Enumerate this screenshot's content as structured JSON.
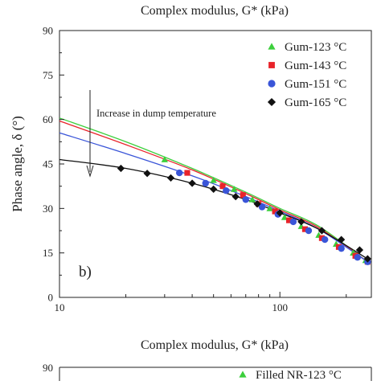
{
  "chart_data": [
    {
      "type": "scatter",
      "title": "Complex modulus, G* (kPa)",
      "xlabel": "",
      "ylabel": "Phase angle, δ (°)",
      "xscale": "log",
      "xlim": [
        10,
        260
      ],
      "ylim": [
        0,
        90
      ],
      "x_ticks": [
        10,
        100
      ],
      "x_tick_labels": [
        "10",
        "100"
      ],
      "y_ticks": [
        0,
        15,
        30,
        45,
        60,
        75,
        90
      ],
      "y_tick_labels": [
        "0",
        "15",
        "30",
        "45",
        "60",
        "75",
        "90"
      ],
      "panel_label": "b)",
      "annotation": "Increase in dump temperature",
      "grid": false,
      "legend_position": "top-right",
      "series": [
        {
          "name": "Gum-123 °C",
          "marker": "triangle",
          "color": "#3ccf3c",
          "x": [
            30,
            50,
            62,
            75,
            90,
            105,
            125,
            150,
            180,
            215,
            245
          ],
          "y": [
            46.5,
            39.5,
            36.5,
            33,
            30,
            27,
            24,
            21,
            18,
            15,
            12.5
          ],
          "fit_x": [
            10,
            20,
            40,
            70,
            100,
            150,
            245
          ],
          "fit_y": [
            60.5,
            52.5,
            43.5,
            35.5,
            30,
            24,
            12.5
          ]
        },
        {
          "name": "Gum-143 °C",
          "marker": "square",
          "color": "#e8232a",
          "x": [
            38,
            55,
            68,
            80,
            95,
            110,
            130,
            155,
            185,
            220,
            250
          ],
          "y": [
            42,
            37.5,
            34.5,
            31.5,
            29,
            26,
            23,
            20,
            17,
            14,
            12
          ],
          "fit_x": [
            10,
            20,
            40,
            70,
            100,
            150,
            250
          ],
          "fit_y": [
            59.5,
            51.5,
            43,
            35,
            29.5,
            23.5,
            12
          ]
        },
        {
          "name": "Gum-151 °C",
          "marker": "circle",
          "color": "#3a55d8",
          "x": [
            35,
            46,
            57,
            70,
            83,
            98,
            115,
            135,
            160,
            190,
            225,
            250
          ],
          "y": [
            42,
            38.5,
            36,
            33,
            30.5,
            28,
            25.5,
            22.5,
            19.5,
            16.5,
            13.5,
            12
          ],
          "fit_x": [
            10,
            20,
            40,
            70,
            100,
            150,
            250
          ],
          "fit_y": [
            55.5,
            48.5,
            41,
            34,
            29,
            23,
            12
          ]
        },
        {
          "name": "Gum-165 °C",
          "marker": "diamond",
          "color": "#111111",
          "x": [
            19,
            25,
            32,
            40,
            50,
            63,
            79,
            100,
            125,
            155,
            190,
            230,
            250
          ],
          "y": [
            43.5,
            41.8,
            40.3,
            38.5,
            36.5,
            34,
            31.5,
            28.5,
            25.5,
            22.5,
            19.5,
            16,
            13
          ],
          "fit_x": [
            10,
            20,
            40,
            70,
            100,
            150,
            250
          ],
          "fit_y": [
            46.5,
            43.5,
            38.5,
            33,
            28.5,
            23,
            13
          ]
        }
      ]
    },
    {
      "type": "scatter",
      "title": "Complex modulus, G* (kPa)",
      "xscale": "log",
      "ylim_top_tick_label": "90",
      "legend_position": "top-right",
      "series": [
        {
          "name": "Filled NR-123 °C",
          "marker": "triangle",
          "color": "#3ccf3c"
        }
      ]
    }
  ],
  "arrow_icon": "down-arrow"
}
